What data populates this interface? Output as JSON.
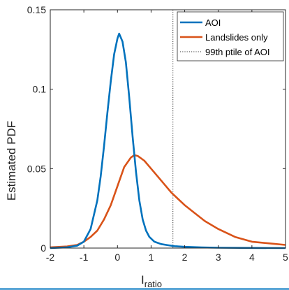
{
  "colors": {
    "aoi": "#0072BD",
    "landslides": "#D95319",
    "threshold": "#333333",
    "axis": "#262626",
    "bottom_bar": "#5aa6d6"
  },
  "chart_data": {
    "type": "line",
    "xlabel_main": "I",
    "xlabel_sub": "ratio",
    "ylabel": "Estimated PDF",
    "xlim": [
      -2,
      5
    ],
    "ylim": [
      0,
      0.15
    ],
    "x_ticks": [
      -2,
      -1,
      0,
      1,
      2,
      3,
      4,
      5
    ],
    "x_tick_labels": [
      "-2",
      "-1",
      "0",
      "1",
      "2",
      "3",
      "4",
      "5"
    ],
    "y_ticks": [
      0,
      0.05,
      0.1,
      0.15
    ],
    "y_tick_labels": [
      "0",
      "0.05",
      "0.1",
      "0.15"
    ],
    "grid": false,
    "legend_position": "top-right",
    "series": [
      {
        "name": "AOI",
        "x": [
          -2,
          -1.5,
          -1.2,
          -1.0,
          -0.8,
          -0.6,
          -0.5,
          -0.4,
          -0.3,
          -0.2,
          -0.1,
          0.0,
          0.05,
          0.15,
          0.25,
          0.35,
          0.45,
          0.55,
          0.65,
          0.75,
          0.85,
          0.95,
          1.1,
          1.3,
          1.5,
          1.7,
          2.0,
          2.5,
          3.0,
          4.0,
          5.0
        ],
        "y": [
          0,
          0.0005,
          0.0015,
          0.004,
          0.012,
          0.03,
          0.045,
          0.064,
          0.085,
          0.105,
          0.122,
          0.132,
          0.135,
          0.13,
          0.117,
          0.095,
          0.07,
          0.048,
          0.03,
          0.018,
          0.011,
          0.007,
          0.004,
          0.0025,
          0.0018,
          0.0012,
          0.0008,
          0.0004,
          0.0002,
          0.0001,
          0
        ]
      },
      {
        "name": "Landslides only",
        "x": [
          -2,
          -1.5,
          -1.2,
          -1.0,
          -0.8,
          -0.6,
          -0.4,
          -0.2,
          0.0,
          0.2,
          0.4,
          0.5,
          0.6,
          0.8,
          1.0,
          1.2,
          1.4,
          1.6,
          1.8,
          2.0,
          2.3,
          2.6,
          3.0,
          3.5,
          4.0,
          4.5,
          5.0
        ],
        "y": [
          0.0005,
          0.001,
          0.002,
          0.004,
          0.007,
          0.011,
          0.018,
          0.027,
          0.039,
          0.051,
          0.057,
          0.0585,
          0.058,
          0.055,
          0.05,
          0.045,
          0.04,
          0.035,
          0.031,
          0.027,
          0.022,
          0.017,
          0.012,
          0.007,
          0.004,
          0.003,
          0.002
        ]
      }
    ],
    "threshold": {
      "name": "99th ptile of AOI",
      "x": 1.65
    }
  }
}
